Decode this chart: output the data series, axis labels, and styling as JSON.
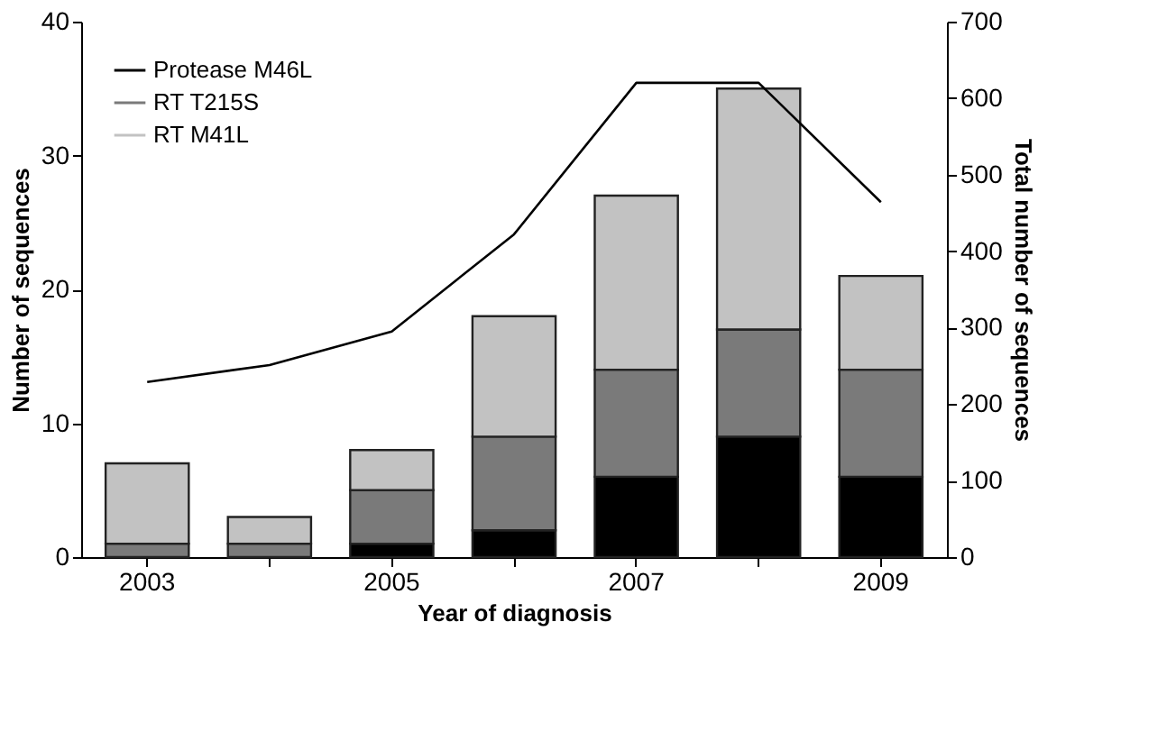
{
  "chart_data": {
    "type": "bar",
    "stacked": true,
    "categories": [
      "2003",
      null,
      "2005",
      null,
      "2007",
      null,
      "2009"
    ],
    "xlabel": "Year of diagnosis",
    "ylabel": "Number of sequences",
    "y2label": "Total number of sequences",
    "ylim": [
      0,
      40
    ],
    "yticks": [
      0,
      10,
      20,
      30,
      40
    ],
    "y2lim": [
      0,
      700
    ],
    "y2ticks": [
      0,
      100,
      200,
      300,
      400,
      500,
      600,
      700
    ],
    "legend": "top left",
    "grid": false,
    "series": [
      {
        "name": "Protease M46L",
        "color": "#000000",
        "values": [
          0,
          0,
          1,
          2,
          6,
          9,
          6
        ]
      },
      {
        "name": "RT T215S",
        "color": "#7a7a7a",
        "values": [
          1,
          1,
          4,
          7,
          8,
          8,
          8
        ]
      },
      {
        "name": "RT M41L",
        "color": "#c2c2c2",
        "values": [
          6,
          2,
          3,
          9,
          13,
          18,
          7
        ]
      },
      {
        "type": "line",
        "axis": "y2",
        "color": "#000000",
        "values": [
          229,
          251,
          295,
          422,
          620,
          620,
          464
        ]
      }
    ]
  }
}
